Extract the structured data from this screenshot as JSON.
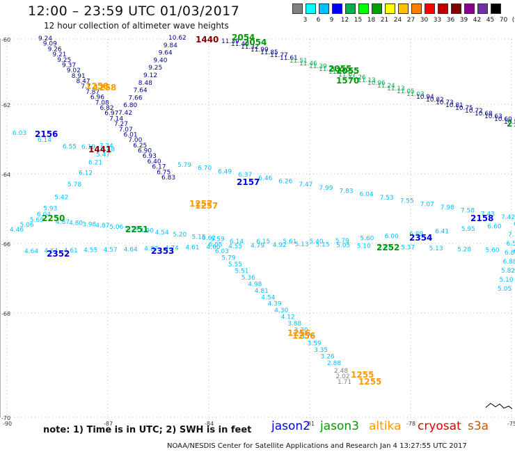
{
  "title": "12:00  –  23:59 UTC 01/03/2017",
  "subtitle": "12 hour collection of altimeter wave heights",
  "scale": {
    "colors": [
      "#808080",
      "#00ffff",
      "#00bfff",
      "#0000ff",
      "#00b050",
      "#00ff00",
      "#00a000",
      "#ffff00",
      "#ffc000",
      "#ff8000",
      "#ff0000",
      "#c00000",
      "#800000",
      "#8b008b",
      "#7030a0",
      "#000000"
    ],
    "labels": [
      "3",
      "6",
      "9",
      "12",
      "15",
      "18",
      "21",
      "24",
      "27",
      "30",
      "33",
      "36",
      "39",
      "42",
      "45",
      "70",
      "(ft)"
    ]
  },
  "axes": {
    "lat_labels": [
      "-60",
      "-62",
      "-64",
      "-66",
      "-68",
      "-70"
    ],
    "lon_labels": [
      "-90",
      "-87",
      "-84",
      "-81",
      "-78",
      "-75"
    ]
  },
  "note": "note:  1) Time is in UTC;  2) SWH is in feet",
  "satellites": [
    {
      "name": "jason2",
      "color": "#0000dd"
    },
    {
      "name": "jason3",
      "color": "#009900"
    },
    {
      "name": "altika",
      "color": "#ff9900"
    },
    {
      "name": "cryosat",
      "color": "#dd0000"
    },
    {
      "name": "s3a",
      "color": "#cc5500"
    }
  ],
  "credit": "NOAA/NESDIS Center for Satellite Applications and Research    Jan  4 13:27:55 UTC 2017",
  "tracks": {
    "jason2_a": [
      "9.24",
      "9.09",
      "9.26",
      "9.21",
      "9.25",
      "9.37",
      "9.02",
      "8.91",
      "8.47",
      "7.7",
      "7.87",
      "6.96",
      "7.08",
      "6.82",
      "6.97",
      "7.14",
      "7.27",
      "7.07",
      "6.01",
      "7.00",
      "6.25",
      "6.90",
      "6.93",
      "6.40",
      "6.17",
      "6.75",
      "6.83"
    ],
    "jason2_b": [
      "10.62",
      "9.84",
      "9.64",
      "9.40",
      "9.25",
      "9.12",
      "8.48",
      "7.64",
      "7.66",
      "6.80",
      "7.42"
    ],
    "jason3_a": [
      "11.39",
      "11.40",
      "11.32",
      "11.99",
      "11.85",
      "11.77",
      "11.61",
      "11.51",
      "11.46",
      "11.39",
      "11.26",
      "11.15",
      "11.07",
      "11.26",
      "11.13",
      "10.96",
      "11.24",
      "11.13",
      "11.05",
      "11.03",
      "10.94",
      "10.82",
      "10.73",
      "10.81",
      "10.75",
      "10.72",
      "10.68",
      "10.63",
      "10.60",
      "10.58",
      "10.52"
    ],
    "track_2156": [
      "6.03",
      "6.14",
      "6.55",
      "6.19",
      "7.34",
      "6.48",
      "5.47",
      "6.21",
      "6.12",
      "5.78",
      "5.42",
      "5.93",
      "6.04",
      "5.69",
      "5.06",
      "4.46"
    ],
    "track_2157": [
      "5.79",
      "6.70",
      "6.49",
      "6.37",
      "6.46",
      "6.26",
      "7.47",
      "7.99",
      "7.83",
      "6.04",
      "7.53",
      "7.55",
      "7.07",
      "7.98",
      "7.58",
      "7.43",
      "7.42"
    ],
    "track_2250": [
      "4.87",
      "4.80",
      "3.98",
      "4.87",
      "5.06",
      "5.34",
      "4.90",
      "4.54",
      "5.20",
      "5.15",
      "5.59",
      "6.14",
      "6.15",
      "5.61",
      "5.40",
      "5.79",
      "5.60",
      "6.00",
      "6.89",
      "6.41",
      "5.95",
      "6.60",
      "6.48"
    ],
    "track_2352": [
      "4.64",
      "4.64",
      "4.61",
      "4.55",
      "4.57",
      "4.64",
      "4.87",
      "4.74",
      "4.61",
      "4.60",
      "4.55",
      "4.79",
      "4.92",
      "5.13",
      "5.15",
      "5.05",
      "5.10",
      "5.45",
      "5.37",
      "5.13",
      "5.28",
      "5.60",
      "6.45"
    ],
    "track_s": [
      "6.62",
      "6.05",
      "6.03",
      "5.79",
      "5.55",
      "5.51",
      "5.36",
      "4.98",
      "4.81",
      "4.54",
      "4.39",
      "4.30",
      "4.12",
      "3.88",
      "3.70",
      "3.76",
      "3.59",
      "3.35",
      "3.26",
      "2.88"
    ],
    "track_right": [
      "7.77",
      "6.51",
      "6.81",
      "6.88",
      "5.82",
      "5.10",
      "5.05"
    ],
    "tail": [
      "2.48",
      "2.02",
      "1.71"
    ]
  },
  "track_ids": [
    {
      "id": "1440",
      "color": "#800000"
    },
    {
      "id": "2054",
      "color": "#009900"
    },
    {
      "id": "2054",
      "color": "#009900"
    },
    {
      "id": "2055",
      "color": "#009900"
    },
    {
      "id": "2055",
      "color": "#009900"
    },
    {
      "id": "1570",
      "color": "#009900"
    },
    {
      "id": "1258",
      "color": "#ff9900"
    },
    {
      "id": "1258",
      "color": "#ff9900"
    },
    {
      "id": "2156",
      "color": "#0000dd"
    },
    {
      "id": "1441",
      "color": "#800000"
    },
    {
      "id": "2157",
      "color": "#0000dd"
    },
    {
      "id": "1257",
      "color": "#ff9900"
    },
    {
      "id": "1257",
      "color": "#ff9900"
    },
    {
      "id": "2250",
      "color": "#009900"
    },
    {
      "id": "2251",
      "color": "#009900"
    },
    {
      "id": "2158",
      "color": "#0000dd"
    },
    {
      "id": "2354",
      "color": "#0000dd"
    },
    {
      "id": "2252",
      "color": "#009900"
    },
    {
      "id": "2352",
      "color": "#0000dd"
    },
    {
      "id": "2353",
      "color": "#0000dd"
    },
    {
      "id": "1256",
      "color": "#ff9900"
    },
    {
      "id": "1256",
      "color": "#ff9900"
    },
    {
      "id": "1255",
      "color": "#ff9900"
    },
    {
      "id": "1255",
      "color": "#ff9900"
    },
    {
      "id": "2",
      "color": "#009900"
    }
  ]
}
